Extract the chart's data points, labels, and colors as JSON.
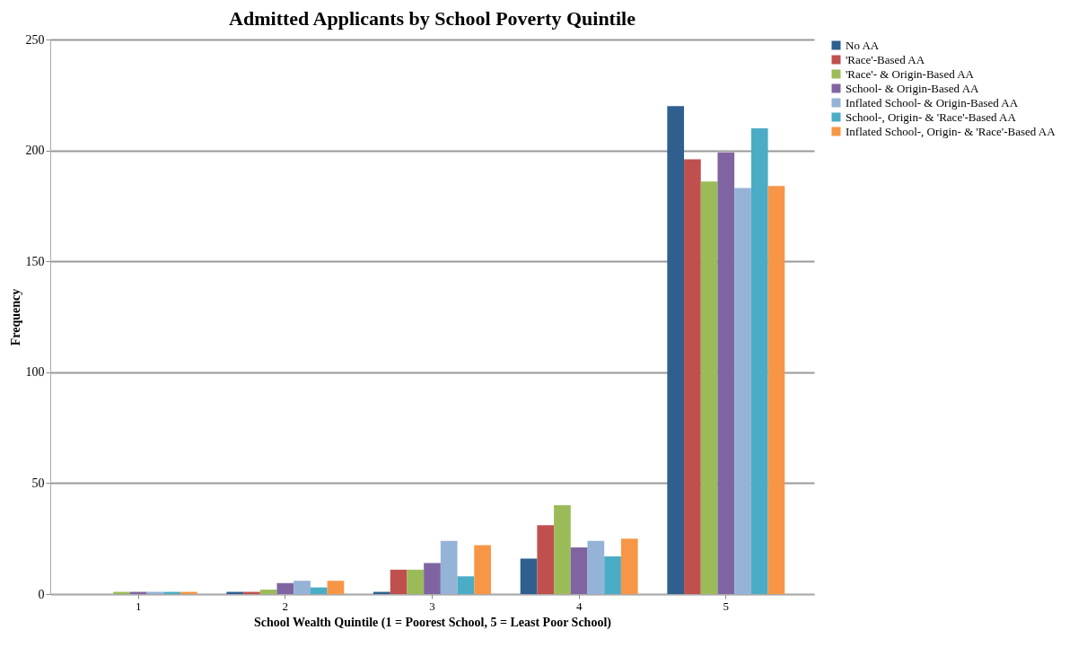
{
  "chart_data": {
    "type": "bar",
    "title": "Admitted Applicants by School Poverty Quintile",
    "xlabel": "School Wealth Quintile (1 = Poorest School, 5 = Least Poor School)",
    "ylabel": "Frequency",
    "categories": [
      "1",
      "2",
      "3",
      "4",
      "5"
    ],
    "series": [
      {
        "name": "No AA",
        "color": "#2e5f8f",
        "values": [
          0,
          1,
          1,
          16,
          220
        ]
      },
      {
        "name": "'Race'-Based AA",
        "color": "#c0504d",
        "values": [
          0,
          1,
          11,
          31,
          196
        ]
      },
      {
        "name": "'Race'- & Origin-Based  AA",
        "color": "#9bbb59",
        "values": [
          1,
          2,
          11,
          40,
          186
        ]
      },
      {
        "name": "School- & Origin-Based  AA",
        "color": "#8064a2",
        "values": [
          1,
          5,
          14,
          21,
          199
        ]
      },
      {
        "name": "Inflated School- & Origin-Based  AA",
        "color": "#95b3d7",
        "values": [
          1,
          6,
          24,
          24,
          183
        ]
      },
      {
        "name": "School-, Origin-  & 'Race'-Based AA",
        "color": "#4bacc6",
        "values": [
          1,
          3,
          8,
          17,
          210
        ]
      },
      {
        "name": "Inflated School-, Origin-  & 'Race'-Based AA",
        "color": "#f79646",
        "values": [
          1,
          6,
          22,
          25,
          184
        ]
      }
    ],
    "ylim": [
      0,
      250
    ],
    "yticks": [
      0,
      50,
      100,
      150,
      200,
      250
    ],
    "grid": "y",
    "legend": "right"
  }
}
